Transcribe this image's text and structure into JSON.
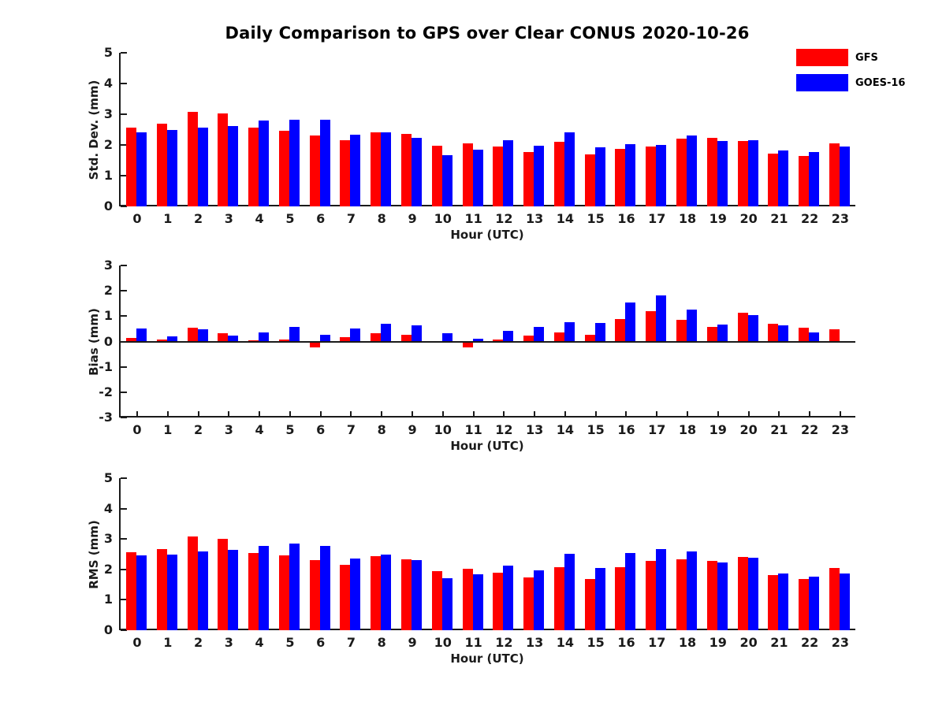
{
  "title": "Daily Comparison to GPS over Clear CONUS 2020-10-26",
  "legend": {
    "position": "top-right",
    "items": [
      {
        "label": "GFS",
        "color": "#ff0000"
      },
      {
        "label": "GOES-16",
        "color": "#0000ff"
      }
    ]
  },
  "chart_data": [
    {
      "type": "bar",
      "name": "std-dev",
      "title": "",
      "xlabel": "Hour (UTC)",
      "ylabel": "Std. Dev. (mm)",
      "ylim": [
        0,
        5
      ],
      "yticks": [
        0,
        1,
        2,
        3,
        4,
        5
      ],
      "grid": false,
      "zero_line": false,
      "x_ticks_visible": false,
      "categories": [
        "0",
        "1",
        "2",
        "3",
        "4",
        "5",
        "6",
        "7",
        "8",
        "9",
        "10",
        "11",
        "12",
        "13",
        "14",
        "15",
        "16",
        "17",
        "18",
        "19",
        "20",
        "21",
        "22",
        "23"
      ],
      "series": [
        {
          "name": "GFS",
          "color": "#ff0000",
          "values": [
            2.56,
            2.68,
            3.07,
            3.02,
            2.56,
            2.45,
            2.31,
            2.15,
            2.4,
            2.36,
            1.97,
            2.04,
            1.96,
            1.78,
            2.09,
            1.7,
            1.86,
            1.96,
            2.21,
            2.22,
            2.14,
            1.73,
            1.65,
            2.04
          ]
        },
        {
          "name": "GOES-16",
          "color": "#0000ff",
          "values": [
            2.41,
            2.48,
            2.56,
            2.62,
            2.79,
            2.81,
            2.81,
            2.34,
            2.41,
            2.24,
            1.66,
            1.84,
            2.16,
            1.97,
            2.41,
            1.93,
            2.03,
            2.01,
            2.32,
            2.13,
            2.16,
            1.81,
            1.77,
            1.96
          ]
        }
      ]
    },
    {
      "type": "bar",
      "name": "bias",
      "title": "",
      "xlabel": "Hour (UTC)",
      "ylabel": "Bias (mm)",
      "ylim": [
        -3,
        3
      ],
      "yticks": [
        -3,
        -2,
        -1,
        0,
        1,
        2,
        3
      ],
      "grid": false,
      "zero_line": true,
      "x_ticks_visible": true,
      "categories": [
        "0",
        "1",
        "2",
        "3",
        "4",
        "5",
        "6",
        "7",
        "8",
        "9",
        "10",
        "11",
        "12",
        "13",
        "14",
        "15",
        "16",
        "17",
        "18",
        "19",
        "20",
        "21",
        "22",
        "23"
      ],
      "series": [
        {
          "name": "GFS",
          "color": "#ff0000",
          "values": [
            0.15,
            0.08,
            0.55,
            0.32,
            0.06,
            0.08,
            -0.22,
            0.17,
            0.33,
            0.25,
            0.0,
            -0.23,
            0.07,
            0.23,
            0.36,
            0.26,
            0.89,
            1.21,
            0.85,
            0.57,
            1.15,
            0.71,
            0.55,
            0.47
          ]
        },
        {
          "name": "GOES-16",
          "color": "#0000ff",
          "values": [
            0.5,
            0.2,
            0.48,
            0.22,
            0.35,
            0.58,
            0.27,
            0.52,
            0.69,
            0.65,
            0.33,
            0.12,
            0.42,
            0.57,
            0.76,
            0.73,
            1.55,
            1.82,
            1.27,
            0.68,
            1.04,
            0.65,
            0.36,
            0.0
          ]
        }
      ]
    },
    {
      "type": "bar",
      "name": "rms",
      "title": "",
      "xlabel": "Hour (UTC)",
      "ylabel": "RMS (mm)",
      "ylim": [
        0,
        5
      ],
      "yticks": [
        0,
        1,
        2,
        3,
        4,
        5
      ],
      "grid": false,
      "zero_line": false,
      "x_ticks_visible": false,
      "categories": [
        "0",
        "1",
        "2",
        "3",
        "4",
        "5",
        "6",
        "7",
        "8",
        "9",
        "10",
        "11",
        "12",
        "13",
        "14",
        "15",
        "16",
        "17",
        "18",
        "19",
        "20",
        "21",
        "22",
        "23"
      ],
      "series": [
        {
          "name": "GFS",
          "color": "#ff0000",
          "values": [
            2.56,
            2.67,
            3.08,
            3.01,
            2.53,
            2.45,
            2.3,
            2.14,
            2.43,
            2.34,
            1.94,
            2.03,
            1.89,
            1.74,
            2.07,
            1.68,
            2.06,
            2.27,
            2.33,
            2.27,
            2.42,
            1.82,
            1.68,
            2.05
          ]
        },
        {
          "name": "GOES-16",
          "color": "#0000ff",
          "values": [
            2.45,
            2.48,
            2.58,
            2.63,
            2.78,
            2.86,
            2.78,
            2.37,
            2.5,
            2.31,
            1.71,
            1.85,
            2.13,
            1.97,
            2.52,
            2.04,
            2.53,
            2.66,
            2.6,
            2.23,
            2.38,
            1.87,
            1.76,
            1.87
          ]
        }
      ]
    }
  ]
}
